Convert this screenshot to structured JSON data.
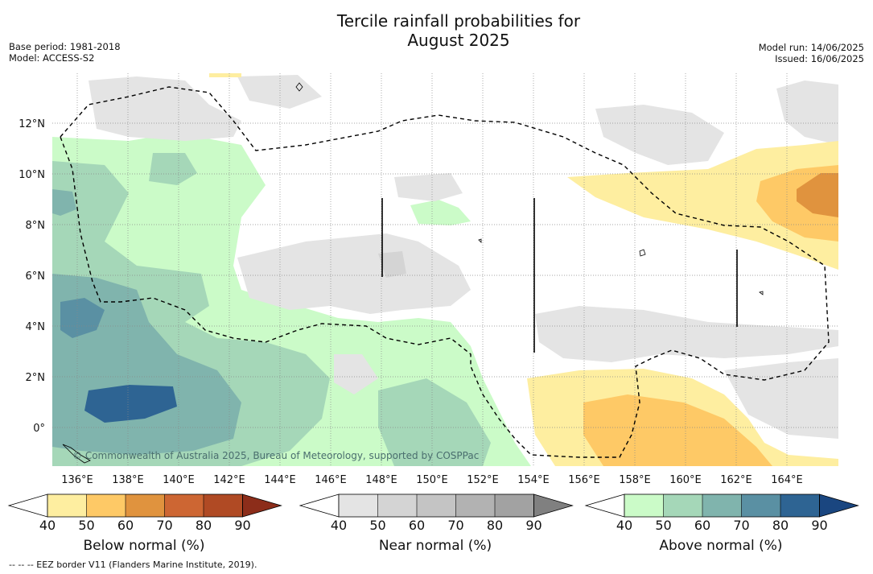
{
  "header": {
    "title_line1": "Tercile rainfall probabilities for",
    "title_line2": "August 2025",
    "base_period": "Base period: 1981-2018",
    "model": "Model: ACCESS-S2",
    "model_run": "Model run: 14/06/2025",
    "issued": "Issued: 16/06/2025"
  },
  "map": {
    "lon_labels": [
      "136°E",
      "138°E",
      "140°E",
      "142°E",
      "144°E",
      "146°E",
      "148°E",
      "150°E",
      "152°E",
      "154°E",
      "156°E",
      "158°E",
      "160°E",
      "162°E",
      "164°E"
    ],
    "lat_labels": [
      "12°N",
      "10°N",
      "8°N",
      "6°N",
      "4°N",
      "2°N",
      "0°"
    ],
    "copyright": "© Commonwealth of Australia 2025, Bureau of Meteorology, supported by COSPPac"
  },
  "colorbars": {
    "ticks": [
      "40",
      "50",
      "60",
      "70",
      "80",
      "90"
    ],
    "below_label": "Below normal (%)",
    "near_label": "Near normal (%)",
    "above_label": "Above normal (%)",
    "below_colors": [
      "#ffffff",
      "#feeea0",
      "#fec966",
      "#e0933e",
      "#cd6633",
      "#b04a24",
      "#8c2d1a"
    ],
    "near_colors": [
      "#ffffff",
      "#e4e4e4",
      "#d4d4d4",
      "#c4c4c4",
      "#b2b2b2",
      "#a2a2a2",
      "#808080"
    ],
    "above_colors": [
      "#ffffff",
      "#cbfbc8",
      "#a5d7b8",
      "#80b4ad",
      "#5a90a3",
      "#2e6493",
      "#1a4680"
    ]
  },
  "footer": "--  --  -- EEZ border V11 (Flanders Marine Institute, 2019)."
}
